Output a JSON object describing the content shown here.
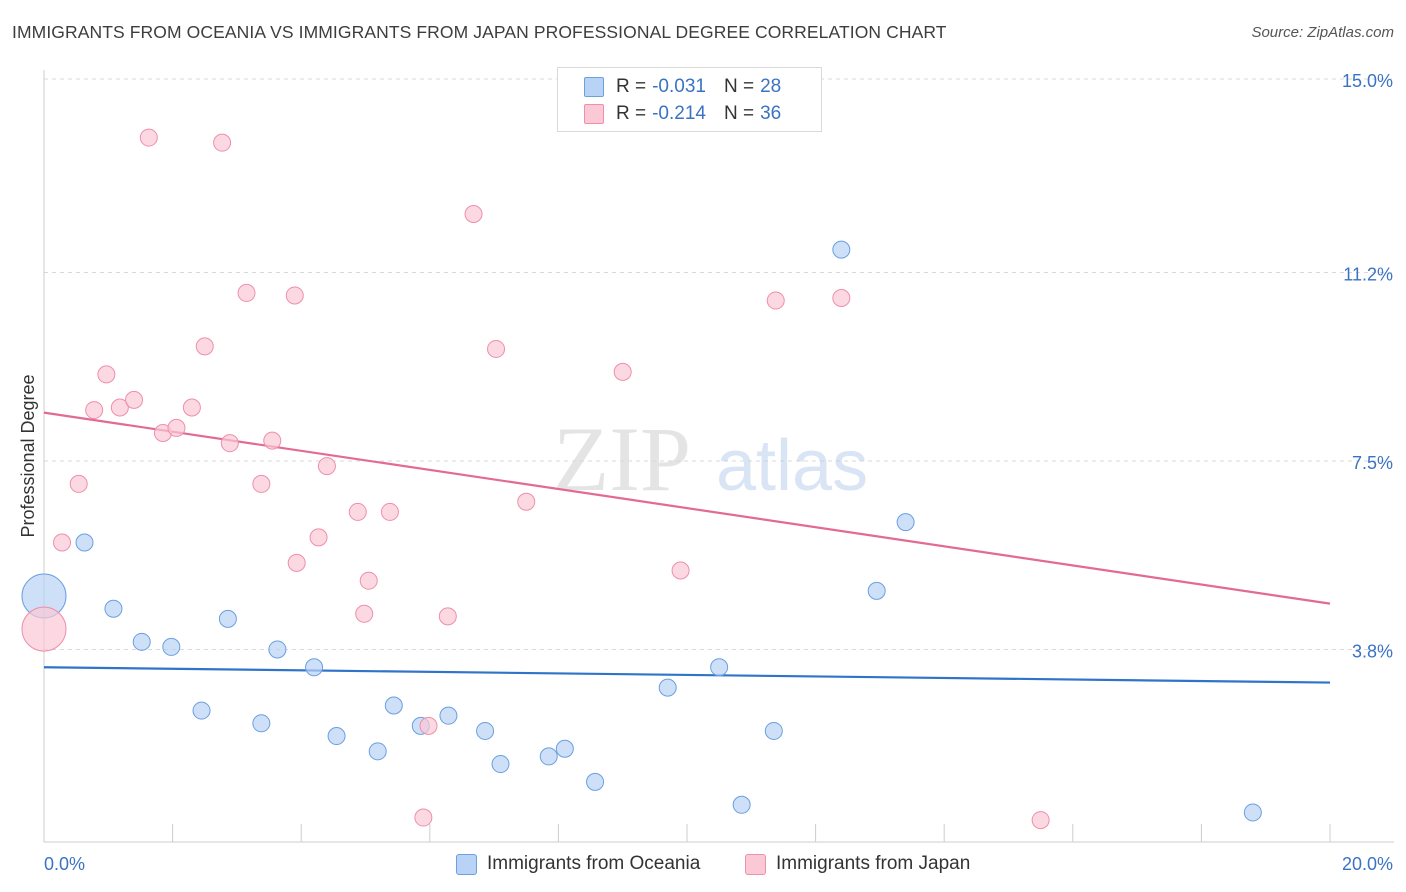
{
  "header": {
    "title": "IMMIGRANTS FROM OCEANIA VS IMMIGRANTS FROM JAPAN PROFESSIONAL DEGREE CORRELATION CHART",
    "source": "Source: ZipAtlas.com"
  },
  "legend": {
    "rows": [
      {
        "r_label": "R =",
        "r_value": "-0.031",
        "n_label": "N =",
        "n_value": "28",
        "color": "#b8d3f5",
        "border": "#6a9fe0"
      },
      {
        "r_label": "R =",
        "r_value": "-0.214",
        "n_label": "N =",
        "n_value": "36",
        "color": "#fbc8d6",
        "border": "#ee8fab"
      }
    ]
  },
  "bottom_legend": {
    "oceania": "Immigrants from Oceania",
    "japan": "Immigrants from Japan"
  },
  "watermark": {
    "zip": "ZIP",
    "atlas": "atlas"
  },
  "chart_data": {
    "type": "scatter",
    "ylabel": "Professional Degree",
    "xlabel": "",
    "xlim": [
      0,
      20
    ],
    "ylim": [
      0,
      15
    ],
    "x_tick_labels": [
      "0.0%",
      "20.0%"
    ],
    "y_ticks": [
      3.8,
      7.5,
      11.2,
      15.0
    ],
    "y_tick_labels": [
      "3.8%",
      "7.5%",
      "11.2%",
      "15.0%"
    ],
    "grid": true,
    "series": [
      {
        "name": "Immigrants from Oceania",
        "color": "#b8d3f5",
        "stroke": "#6a9fe0",
        "trend_color": "#2f74c8",
        "trend": {
          "x": [
            0,
            20
          ],
          "y": [
            3.45,
            3.15
          ]
        },
        "points": [
          {
            "x": 0.0,
            "y": 4.85,
            "big": true
          },
          {
            "x": 0.63,
            "y": 5.9
          },
          {
            "x": 1.08,
            "y": 4.6
          },
          {
            "x": 1.52,
            "y": 3.95
          },
          {
            "x": 1.98,
            "y": 3.85
          },
          {
            "x": 2.45,
            "y": 2.6
          },
          {
            "x": 2.86,
            "y": 4.4
          },
          {
            "x": 3.38,
            "y": 2.35
          },
          {
            "x": 3.63,
            "y": 3.8
          },
          {
            "x": 4.2,
            "y": 3.45
          },
          {
            "x": 4.55,
            "y": 2.1
          },
          {
            "x": 5.19,
            "y": 1.8
          },
          {
            "x": 5.44,
            "y": 2.7
          },
          {
            "x": 5.86,
            "y": 2.3
          },
          {
            "x": 6.29,
            "y": 2.5
          },
          {
            "x": 6.86,
            "y": 2.2
          },
          {
            "x": 7.1,
            "y": 1.55
          },
          {
            "x": 7.85,
            "y": 1.7
          },
          {
            "x": 8.1,
            "y": 1.85
          },
          {
            "x": 8.57,
            "y": 1.2
          },
          {
            "x": 9.7,
            "y": 3.05
          },
          {
            "x": 10.5,
            "y": 3.45
          },
          {
            "x": 10.85,
            "y": 0.75
          },
          {
            "x": 11.35,
            "y": 2.2
          },
          {
            "x": 12.4,
            "y": 11.65
          },
          {
            "x": 12.95,
            "y": 4.95
          },
          {
            "x": 13.4,
            "y": 6.3
          },
          {
            "x": 18.8,
            "y": 0.6
          }
        ]
      },
      {
        "name": "Immigrants from Japan",
        "color": "#fbc8d6",
        "stroke": "#ee8fab",
        "trend_color": "#e26a93",
        "trend": {
          "x": [
            0,
            20
          ],
          "y": [
            8.45,
            4.7
          ]
        },
        "points": [
          {
            "x": 0.0,
            "y": 4.2,
            "big": true
          },
          {
            "x": 0.28,
            "y": 5.9
          },
          {
            "x": 0.54,
            "y": 7.05
          },
          {
            "x": 0.78,
            "y": 8.5
          },
          {
            "x": 0.97,
            "y": 9.2
          },
          {
            "x": 1.18,
            "y": 8.55
          },
          {
            "x": 1.4,
            "y": 8.7
          },
          {
            "x": 1.63,
            "y": 13.85
          },
          {
            "x": 1.85,
            "y": 8.05
          },
          {
            "x": 2.06,
            "y": 8.15
          },
          {
            "x": 2.3,
            "y": 8.55
          },
          {
            "x": 2.5,
            "y": 9.75
          },
          {
            "x": 2.77,
            "y": 13.75
          },
          {
            "x": 2.89,
            "y": 7.85
          },
          {
            "x": 3.15,
            "y": 10.8
          },
          {
            "x": 3.38,
            "y": 7.05
          },
          {
            "x": 3.55,
            "y": 7.9
          },
          {
            "x": 3.9,
            "y": 10.75
          },
          {
            "x": 3.93,
            "y": 5.5
          },
          {
            "x": 4.27,
            "y": 6.0
          },
          {
            "x": 4.4,
            "y": 7.4
          },
          {
            "x": 4.88,
            "y": 6.5
          },
          {
            "x": 4.98,
            "y": 4.5
          },
          {
            "x": 5.05,
            "y": 5.15
          },
          {
            "x": 5.38,
            "y": 6.5
          },
          {
            "x": 5.9,
            "y": 0.5
          },
          {
            "x": 5.98,
            "y": 2.3
          },
          {
            "x": 6.28,
            "y": 4.45
          },
          {
            "x": 6.68,
            "y": 12.35
          },
          {
            "x": 7.03,
            "y": 9.7
          },
          {
            "x": 7.5,
            "y": 6.7
          },
          {
            "x": 9.0,
            "y": 9.25
          },
          {
            "x": 9.9,
            "y": 5.35
          },
          {
            "x": 11.38,
            "y": 10.65
          },
          {
            "x": 12.4,
            "y": 10.7
          },
          {
            "x": 15.5,
            "y": 0.45
          }
        ]
      }
    ]
  }
}
